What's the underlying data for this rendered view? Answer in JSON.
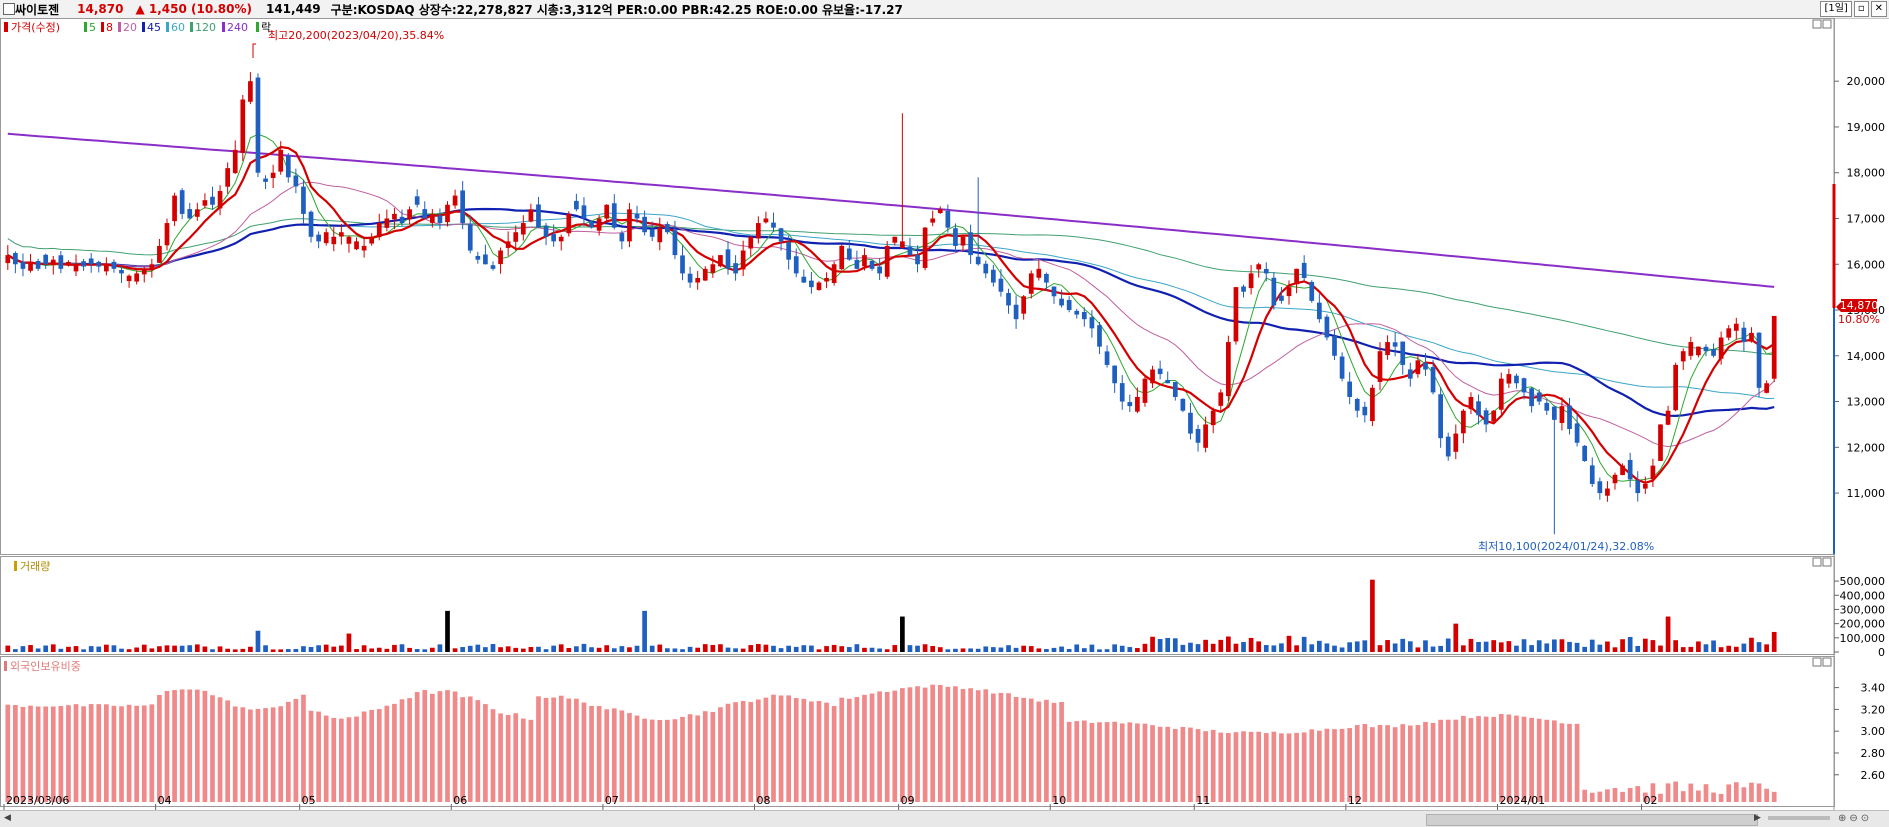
{
  "header": {
    "name": "싸이토젠",
    "price": "14,870",
    "change": "▲ 1,450 (10.80%)",
    "volume": "141,449",
    "info": "구분:KOSDAQ 상장수:22,278,827 시총:3,312억 PER:0.00 PBR:42.25 ROE:0.00 유보율:-17.27",
    "period": "[1일]",
    "colors": {
      "up": "#d40000",
      "down": "#1f5fbf",
      "ma5": "#2ea82e",
      "ma8": "#d40000",
      "ma20": "#c060a0",
      "ma45": "#1020b0",
      "ma60": "#3aa6c8",
      "ma120": "#40a070",
      "ma240": "#8a2ec8"
    }
  },
  "legend": {
    "price": "가격(수정)",
    "ma5": "5",
    "ma8": "8",
    "ma20": "20",
    "ma45": "45",
    "ma60": "60",
    "ma120": "120",
    "ma240": "240",
    "fall": "락"
  },
  "annotations": {
    "high": "최고20,200(2023/04/20),35.84%",
    "low": "최저10,100(2024/01/24),32.08%"
  },
  "price_tag": {
    "price": "14,870",
    "pct": "10.80%"
  },
  "volume_panel": {
    "title": "거래량"
  },
  "foreign_panel": {
    "title": "외국인보유비중"
  },
  "chart_data": [
    {
      "type": "candlestick",
      "title": "",
      "y_ticks": [
        11000,
        12000,
        13000,
        14000,
        15000,
        16000,
        17000,
        18000,
        19000,
        20000
      ],
      "y_tick_labels": [
        "11,000",
        "12,000",
        "13,000",
        "14,000",
        "15,000",
        "16,000",
        "17,000",
        "18,000",
        "19,000",
        "20,000"
      ],
      "ylim": [
        9800,
        20900
      ],
      "x_labels": [
        "2023/03/06",
        "04",
        "05",
        "06",
        "07",
        "08",
        "09",
        "10",
        "11",
        "12",
        "2024/01",
        "02"
      ],
      "x_label_index": [
        0,
        20,
        39,
        59,
        79,
        99,
        118,
        138,
        157,
        177,
        197,
        216
      ],
      "closes": [
        16200,
        16000,
        15900,
        16050,
        15900,
        16000,
        16100,
        15900,
        16050,
        16000,
        15950,
        16000,
        15950,
        16000,
        15900,
        15800,
        15750,
        15800,
        15900,
        16000,
        16400,
        16900,
        17500,
        17100,
        17000,
        17200,
        17400,
        17300,
        17600,
        18100,
        18500,
        19600,
        20000,
        18000,
        17800,
        18000,
        18500,
        17900,
        17700,
        17100,
        16600,
        16500,
        16700,
        16600,
        16700,
        16600,
        16500,
        16400,
        16600,
        16900,
        17000,
        17100,
        16900,
        17200,
        17300,
        17000,
        17100,
        16900,
        17300,
        17500,
        16900,
        16300,
        16100,
        16000,
        15900,
        16300,
        16500,
        16700,
        16900,
        17200,
        16800,
        16600,
        16500,
        16600,
        17100,
        17200,
        17000,
        16800,
        17000,
        17300,
        16800,
        16500,
        17200,
        17000,
        16700,
        16600,
        16800,
        16700,
        16200,
        15800,
        15600,
        15700,
        15900,
        16000,
        16200,
        15900,
        15800,
        16300,
        16600,
        16900,
        17000,
        16800,
        16500,
        16100,
        15800,
        15600,
        15500,
        15600,
        15700,
        16000,
        16400,
        16100,
        15900,
        16200,
        15900,
        15800,
        16400,
        16600,
        16500,
        16200,
        16000,
        16800,
        17000,
        17200,
        16800,
        16400,
        16600,
        16200,
        16000,
        15800,
        15600,
        15400,
        15100,
        14800,
        15300,
        15800,
        15900,
        15600,
        15300,
        15100,
        15000,
        14900,
        14800,
        14600,
        14200,
        13800,
        13400,
        13000,
        12900,
        13100,
        13500,
        13700,
        13600,
        13400,
        13100,
        12800,
        12300,
        12100,
        12500,
        12800,
        13200,
        14300,
        15500,
        15400,
        15800,
        16000,
        15800,
        15100,
        15200,
        15500,
        15900,
        15700,
        15200,
        14800,
        14400,
        14000,
        13500,
        13100,
        12800,
        12700,
        13300,
        14100,
        14300,
        14200,
        13800,
        13500,
        13900,
        13700,
        13200,
        12200,
        11800,
        12300,
        12800,
        13100,
        12700,
        12500,
        12800,
        13500,
        13600,
        13400,
        13200,
        12900,
        13000,
        12800,
        12600,
        12900,
        12400,
        12100,
        11700,
        11200,
        11000,
        11100,
        11400,
        11600,
        11300,
        11000,
        11200,
        11600,
        12500,
        12800,
        13800,
        14100,
        14300,
        14200,
        14100,
        14000,
        14400,
        14600,
        14700,
        14300,
        14500,
        13300,
        13400,
        14870
      ],
      "ma240": {
        "start": 18850,
        "end": 15500
      },
      "volume_axis": {
        "ticks": [
          0,
          100000,
          200000,
          300000,
          400000,
          500000
        ],
        "labels": [
          "0",
          "100,000",
          "200,000",
          "300,000",
          "400,000",
          "500,000"
        ],
        "max": 550000
      },
      "volume_peaks": {
        "apr_24": 150000,
        "may_15": 130000,
        "jun_19": 290000,
        "jul_04": 290000,
        "sep_01": 250000,
        "dec_22": 510000,
        "jan_05": 200000,
        "feb_19": 250000,
        "last": 141449
      },
      "foreign_axis": {
        "ticks": [
          2.6,
          2.8,
          3.0,
          3.2,
          3.4
        ],
        "labels": [
          "2.60",
          "2.80",
          "3.00",
          "3.20",
          "3.40"
        ],
        "min": 2.35,
        "max": 3.58
      }
    }
  ]
}
